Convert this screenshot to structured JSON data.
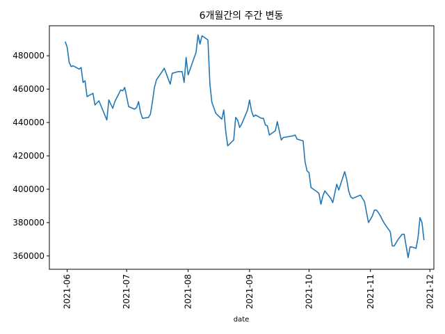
{
  "chart_data": {
    "type": "line",
    "title": "6개월간의 주간 변동",
    "xlabel": "date",
    "ylabel": "",
    "xlim": [
      "2021-05-23",
      "2021-12-03"
    ],
    "ylim": [
      352000,
      498000
    ],
    "x_ticks": [
      "2021-06",
      "2021-07",
      "2021-08",
      "2021-09",
      "2021-10",
      "2021-11",
      "2021-12"
    ],
    "y_ticks": [
      360000,
      380000,
      400000,
      420000,
      440000,
      460000,
      480000
    ],
    "y_tick_labels": [
      "360000",
      "380000",
      "400000",
      "420000",
      "440000",
      "460000",
      "480000"
    ],
    "grid": false,
    "legend": "none",
    "series": [
      {
        "color": "#1f77b4",
        "points": [
          [
            "2021-05-31",
            488500
          ],
          [
            "2021-06-01",
            485000
          ],
          [
            "2021-06-02",
            476000
          ],
          [
            "2021-06-03",
            473500
          ],
          [
            "2021-06-04",
            474000
          ],
          [
            "2021-06-07",
            472000
          ],
          [
            "2021-06-08",
            473000
          ],
          [
            "2021-06-09",
            464000
          ],
          [
            "2021-06-10",
            465000
          ],
          [
            "2021-06-11",
            455500
          ],
          [
            "2021-06-14",
            457500
          ],
          [
            "2021-06-15",
            450500
          ],
          [
            "2021-06-17",
            453000
          ],
          [
            "2021-06-21",
            441500
          ],
          [
            "2021-06-22",
            453500
          ],
          [
            "2021-06-24",
            448500
          ],
          [
            "2021-06-25",
            452500
          ],
          [
            "2021-06-28",
            459500
          ],
          [
            "2021-06-29",
            459000
          ],
          [
            "2021-06-30",
            461000
          ],
          [
            "2021-07-01",
            455500
          ],
          [
            "2021-07-02",
            449500
          ],
          [
            "2021-07-05",
            448000
          ],
          [
            "2021-07-06",
            449000
          ],
          [
            "2021-07-07",
            452500
          ],
          [
            "2021-07-08",
            446000
          ],
          [
            "2021-07-09",
            442500
          ],
          [
            "2021-07-12",
            443000
          ],
          [
            "2021-07-13",
            445000
          ],
          [
            "2021-07-14",
            452500
          ],
          [
            "2021-07-15",
            461000
          ],
          [
            "2021-07-16",
            465500
          ],
          [
            "2021-07-20",
            472500
          ],
          [
            "2021-07-22",
            466000
          ],
          [
            "2021-07-23",
            463000
          ],
          [
            "2021-07-24",
            469500
          ],
          [
            "2021-07-27",
            470500
          ],
          [
            "2021-07-29",
            470500
          ],
          [
            "2021-07-30",
            464000
          ],
          [
            "2021-07-31",
            479000
          ],
          [
            "2021-08-01",
            468500
          ],
          [
            "2021-08-05",
            482000
          ],
          [
            "2021-08-06",
            492500
          ],
          [
            "2021-08-07",
            487000
          ],
          [
            "2021-08-08",
            492000
          ],
          [
            "2021-08-11",
            489500
          ],
          [
            "2021-08-12",
            463000
          ],
          [
            "2021-08-13",
            452000
          ],
          [
            "2021-08-15",
            445500
          ],
          [
            "2021-08-18",
            442000
          ],
          [
            "2021-08-19",
            447500
          ],
          [
            "2021-08-20",
            434500
          ],
          [
            "2021-08-21",
            426000
          ],
          [
            "2021-08-24",
            429500
          ],
          [
            "2021-08-25",
            443000
          ],
          [
            "2021-08-26",
            441500
          ],
          [
            "2021-08-27",
            437000
          ],
          [
            "2021-08-28",
            439000
          ],
          [
            "2021-08-31",
            447500
          ],
          [
            "2021-09-01",
            453500
          ],
          [
            "2021-09-02",
            447000
          ],
          [
            "2021-09-03",
            443500
          ],
          [
            "2021-09-04",
            444500
          ],
          [
            "2021-09-07",
            442500
          ],
          [
            "2021-09-08",
            442500
          ],
          [
            "2021-09-09",
            438500
          ],
          [
            "2021-09-10",
            438000
          ],
          [
            "2021-09-11",
            432500
          ],
          [
            "2021-09-14",
            435000
          ],
          [
            "2021-09-15",
            440500
          ],
          [
            "2021-09-17",
            429500
          ],
          [
            "2021-09-18",
            431000
          ],
          [
            "2021-09-23",
            432000
          ],
          [
            "2021-09-24",
            432500
          ],
          [
            "2021-09-25",
            430000
          ],
          [
            "2021-09-28",
            429000
          ],
          [
            "2021-09-29",
            416500
          ],
          [
            "2021-09-30",
            411000
          ],
          [
            "2021-10-01",
            410000
          ],
          [
            "2021-10-02",
            401000
          ],
          [
            "2021-10-05",
            398500
          ],
          [
            "2021-10-06",
            397500
          ],
          [
            "2021-10-07",
            391000
          ],
          [
            "2021-10-08",
            396000
          ],
          [
            "2021-10-09",
            399000
          ],
          [
            "2021-10-12",
            394500
          ],
          [
            "2021-10-13",
            392000
          ],
          [
            "2021-10-15",
            403000
          ],
          [
            "2021-10-16",
            399500
          ],
          [
            "2021-10-19",
            410500
          ],
          [
            "2021-10-20",
            406000
          ],
          [
            "2021-10-21",
            399000
          ],
          [
            "2021-10-22",
            395500
          ],
          [
            "2021-10-23",
            394500
          ],
          [
            "2021-10-27",
            396500
          ],
          [
            "2021-10-29",
            392500
          ],
          [
            "2021-10-31",
            380000
          ],
          [
            "2021-11-02",
            384000
          ],
          [
            "2021-11-03",
            387500
          ],
          [
            "2021-11-04",
            387500
          ],
          [
            "2021-11-05",
            386000
          ],
          [
            "2021-11-06",
            384000
          ],
          [
            "2021-11-08",
            379500
          ],
          [
            "2021-11-11",
            374500
          ],
          [
            "2021-11-12",
            366000
          ],
          [
            "2021-11-13",
            366000
          ],
          [
            "2021-11-15",
            370000
          ],
          [
            "2021-11-17",
            373000
          ],
          [
            "2021-11-18",
            373000
          ],
          [
            "2021-11-19",
            366000
          ],
          [
            "2021-11-20",
            359000
          ],
          [
            "2021-11-21",
            365500
          ],
          [
            "2021-11-23",
            365000
          ],
          [
            "2021-11-24",
            364500
          ],
          [
            "2021-11-25",
            371000
          ],
          [
            "2021-11-26",
            383000
          ],
          [
            "2021-11-27",
            380000
          ],
          [
            "2021-11-28",
            369500
          ]
        ]
      }
    ]
  }
}
